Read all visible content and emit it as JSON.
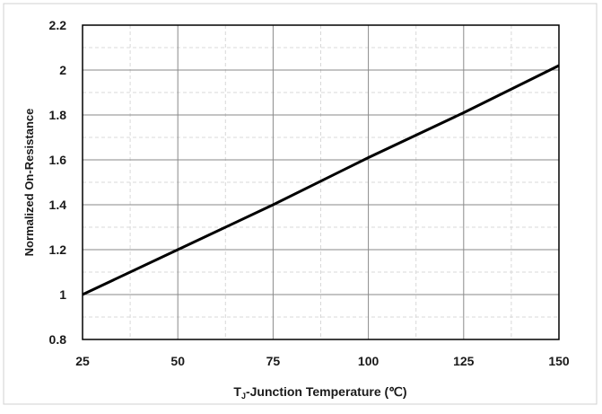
{
  "chart_data": {
    "type": "line",
    "title": "",
    "xlabel": "T",
    "xlabel_subscript": "J",
    "xlabel_rest": "-Junction Temperature (℃)",
    "ylabel": "Normalized On-Resistance",
    "xlim": [
      25,
      150
    ],
    "ylim": [
      0.8,
      2.2
    ],
    "x_ticks": [
      25,
      50,
      75,
      100,
      125,
      150
    ],
    "y_ticks": [
      0.8,
      1.0,
      1.2,
      1.4,
      1.6,
      1.8,
      2.0,
      2.2
    ],
    "x_tick_labels": [
      "25",
      "50",
      "75",
      "100",
      "125",
      "150"
    ],
    "y_tick_labels": [
      "0.8",
      "1",
      "1.2",
      "1.4",
      "1.6",
      "1.8",
      "2",
      "2.2"
    ],
    "grid": true,
    "series": [
      {
        "x": [
          25,
          50,
          75,
          100,
          125,
          150
        ],
        "values": [
          1.0,
          1.2,
          1.4,
          1.61,
          1.81,
          2.02
        ]
      }
    ]
  },
  "colors": {
    "line": "#000000",
    "grid_major": "#8a8a8a",
    "grid_minor": "#d8d8d8",
    "frame_border": "#d0d0d0"
  }
}
